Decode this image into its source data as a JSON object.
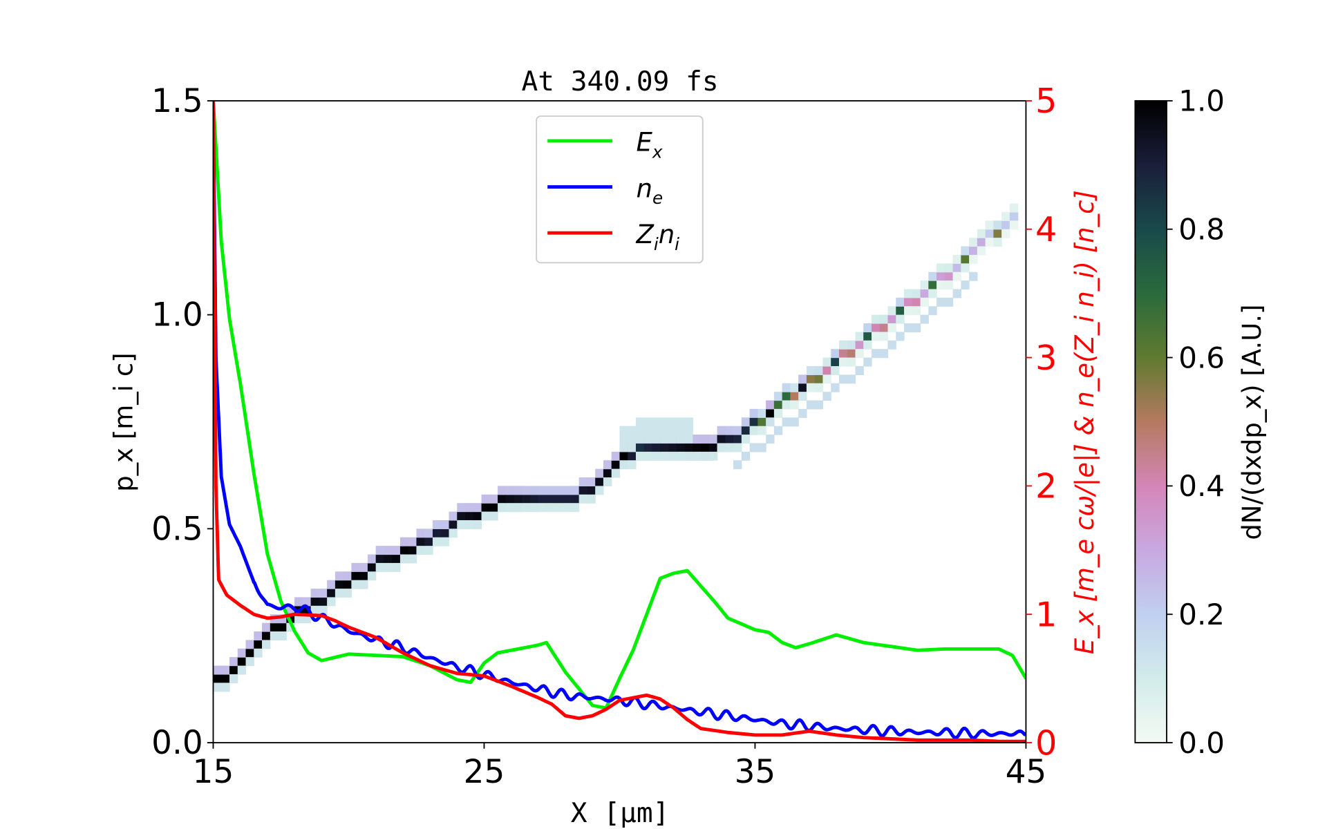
{
  "chart_data": {
    "type": "line",
    "title": "At 340.09 fs",
    "xlabel": "X [μm]",
    "ylabel_left": "p_x [m_i c]",
    "ylabel_right": "E_x [m_e cω/|e|] & n_e(Z_i n_i) [n_c]",
    "colorbar_label": "dN/(dxdp_x) [A.U.]",
    "xlim": [
      15,
      45
    ],
    "ylim_left": [
      0,
      1.5
    ],
    "ylim_right": [
      0,
      5
    ],
    "clim": [
      0,
      1
    ],
    "xticks": [
      "15",
      "25",
      "35",
      "45"
    ],
    "yticks_left": [
      "0.0",
      "0.5",
      "1.0",
      "1.5"
    ],
    "yticks_right": [
      "0",
      "1",
      "2",
      "3",
      "4",
      "5"
    ],
    "cticks": [
      "0.0",
      "0.2",
      "0.4",
      "0.6",
      "0.8",
      "1.0"
    ],
    "legend_position": "top-center",
    "series": [
      {
        "name": "E_x",
        "label_main": "E",
        "label_sub": "x",
        "color": "#00ee00",
        "axis": "right",
        "x": [
          15,
          15.3,
          15.6,
          16,
          16.5,
          17,
          17.5,
          18,
          18.5,
          19,
          20,
          21,
          22,
          23,
          24,
          24.5,
          25,
          25.5,
          26,
          27,
          27.3,
          28,
          28.5,
          29,
          29.5,
          30,
          30.5,
          31,
          31.5,
          32,
          32.5,
          33,
          33.5,
          34,
          35,
          35.5,
          36,
          36.5,
          37,
          38,
          39,
          40,
          41,
          42,
          43,
          44,
          44.5,
          45
        ],
        "y": [
          5.0,
          3.9,
          3.3,
          2.8,
          2.1,
          1.47,
          1.1,
          0.87,
          0.7,
          0.64,
          0.69,
          0.68,
          0.67,
          0.6,
          0.49,
          0.47,
          0.62,
          0.7,
          0.72,
          0.76,
          0.78,
          0.55,
          0.42,
          0.29,
          0.27,
          0.5,
          0.72,
          1.0,
          1.28,
          1.32,
          1.34,
          1.22,
          1.1,
          0.97,
          0.88,
          0.86,
          0.78,
          0.74,
          0.77,
          0.84,
          0.78,
          0.75,
          0.72,
          0.73,
          0.73,
          0.73,
          0.68,
          0.5
        ]
      },
      {
        "name": "n_e",
        "label_main": "n",
        "label_sub": "e",
        "color": "#0000ff",
        "axis": "right",
        "x": [
          15,
          15.1,
          15.3,
          15.6,
          16,
          16.5,
          17,
          17.5,
          18,
          18.5,
          19,
          20,
          21,
          22,
          23,
          24,
          25,
          26,
          27,
          28,
          29,
          30,
          31,
          32,
          33,
          34,
          35,
          36,
          37,
          38,
          39,
          40,
          41,
          42,
          43,
          44,
          45
        ],
        "y": [
          5.0,
          3.0,
          2.07,
          1.7,
          1.53,
          1.25,
          1.07,
          1.05,
          1.06,
          1.02,
          0.97,
          0.87,
          0.8,
          0.74,
          0.66,
          0.59,
          0.53,
          0.47,
          0.42,
          0.37,
          0.35,
          0.33,
          0.3,
          0.27,
          0.24,
          0.21,
          0.18,
          0.15,
          0.13,
          0.11,
          0.1,
          0.09,
          0.08,
          0.08,
          0.07,
          0.07,
          0.07
        ],
        "noise": 0.04
      },
      {
        "name": "Z_i n_i",
        "label_main": "Z",
        "label_sub": "i",
        "label_main2": "n",
        "label_sub2": "i",
        "color": "#ff0000",
        "axis": "right",
        "x": [
          15,
          15.1,
          15.2,
          15.5,
          16,
          16.5,
          17,
          17.5,
          18,
          19,
          19.5,
          20,
          21,
          22,
          23,
          24,
          25,
          26,
          27,
          27.5,
          28,
          28.5,
          29,
          29.5,
          30,
          30.5,
          31,
          31.5,
          32,
          32.5,
          33,
          34,
          35,
          36,
          37,
          38,
          39,
          40,
          41,
          42,
          43,
          44,
          45
        ],
        "y": [
          5.0,
          2.0,
          1.27,
          1.15,
          1.07,
          1.0,
          0.97,
          0.98,
          1.0,
          0.99,
          0.95,
          0.9,
          0.82,
          0.7,
          0.6,
          0.54,
          0.52,
          0.44,
          0.35,
          0.3,
          0.21,
          0.19,
          0.21,
          0.26,
          0.33,
          0.35,
          0.37,
          0.34,
          0.27,
          0.18,
          0.11,
          0.08,
          0.06,
          0.06,
          0.09,
          0.06,
          0.04,
          0.03,
          0.02,
          0.02,
          0.02,
          0.01,
          0.01
        ]
      }
    ],
    "phase_space_ridge": {
      "x": [
        15,
        16,
        17,
        18,
        19,
        20,
        21,
        22,
        23,
        24,
        25,
        26,
        27,
        28,
        29,
        30,
        30.5,
        31,
        32,
        33,
        34,
        35,
        36,
        37,
        38,
        39,
        40,
        41,
        42,
        43,
        44,
        44.5
      ],
      "px": [
        0.13,
        0.19,
        0.25,
        0.29,
        0.33,
        0.37,
        0.41,
        0.44,
        0.47,
        0.51,
        0.54,
        0.56,
        0.56,
        0.55,
        0.59,
        0.65,
        0.67,
        0.69,
        0.67,
        0.68,
        0.7,
        0.74,
        0.79,
        0.84,
        0.89,
        0.94,
        0.99,
        1.04,
        1.09,
        1.15,
        1.2,
        1.23
      ],
      "intensity": [
        1.0,
        1.0,
        1.0,
        1.0,
        0.95,
        1.0,
        0.95,
        1.0,
        0.9,
        0.95,
        1.0,
        0.95,
        0.9,
        0.9,
        0.95,
        1.0,
        0.85,
        0.9,
        0.95,
        1.0,
        0.9,
        0.85,
        0.7,
        0.6,
        0.5,
        0.45,
        0.45,
        0.4,
        0.35,
        0.3,
        0.25,
        0.2
      ]
    }
  }
}
